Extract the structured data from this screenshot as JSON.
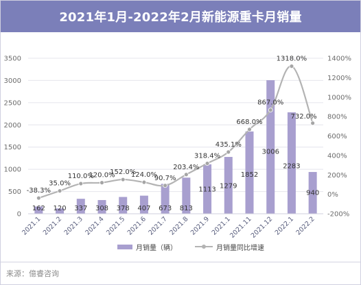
{
  "chart_data": {
    "type": "bar",
    "title": "2021年1月-2022年2月新能源重卡月销量",
    "categories": [
      "2021.1",
      "2021.2",
      "2021.3",
      "2021.4",
      "2021.5",
      "2021.6",
      "2021.7",
      "2021.8",
      "2021.9",
      "2021.1",
      "2021.11",
      "2021.12",
      "2022.1",
      "2022.2"
    ],
    "series": [
      {
        "name": "月销量（辆）",
        "type": "bar",
        "axis": "left",
        "values": [
          162,
          120,
          337,
          308,
          378,
          407,
          673,
          813,
          1113,
          1279,
          1852,
          3006,
          2283,
          940
        ],
        "labels": [
          "162",
          "120",
          "337",
          "308",
          "378",
          "407",
          "673",
          "813",
          "1113",
          "1279",
          "1852",
          "3006",
          "2283",
          "940"
        ]
      },
      {
        "name": "月销量同比增速",
        "type": "line",
        "axis": "right",
        "values": [
          -38.3,
          35.0,
          110.0,
          120.0,
          152.0,
          124.0,
          90.7,
          203.4,
          318.4,
          435.1,
          668.0,
          867.0,
          1318.0,
          732.0
        ],
        "labels": [
          "-38.3%",
          "35.0%",
          "110.0%",
          "120.0%",
          "152.0%",
          "124.0%",
          "90.7%",
          "203.4%",
          "318.4%",
          "435.1%",
          "668.0%",
          "867.0%",
          "1318.0%",
          "732.0%"
        ]
      }
    ],
    "y_left": {
      "range": [
        0,
        3500
      ],
      "ticks": [
        "0",
        "500",
        "1000",
        "1500",
        "2000",
        "2500",
        "3000",
        "3500"
      ]
    },
    "y_right": {
      "range": [
        -200,
        1400
      ],
      "ticks": [
        "-200%",
        "0%",
        "200%",
        "400%",
        "600%",
        "800%",
        "1000%",
        "1200%",
        "1400%"
      ]
    },
    "grid": true,
    "legend_position": "bottom",
    "colors": {
      "bar": "#a89fcf",
      "line": "#b3b3b3",
      "title_bg": "#7b7fb9"
    }
  },
  "source": "来源：億睿咨询"
}
